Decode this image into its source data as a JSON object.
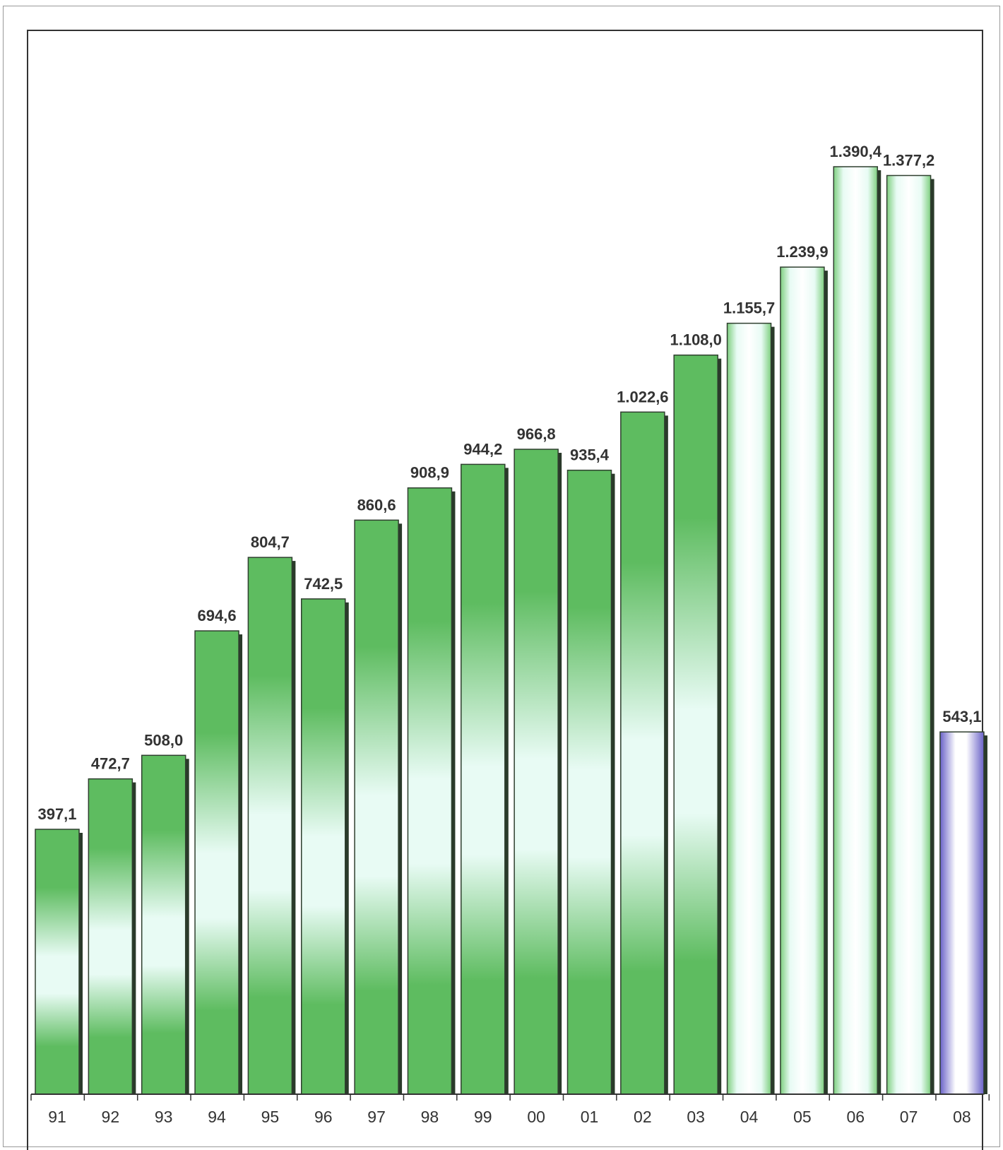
{
  "chart_data": {
    "type": "bar",
    "categories": [
      "91",
      "92",
      "93",
      "94",
      "95",
      "96",
      "97",
      "98",
      "99",
      "00",
      "01",
      "02",
      "03",
      "04",
      "05",
      "06",
      "07",
      "08"
    ],
    "values": [
      397.1,
      472.7,
      508.0,
      694.6,
      804.7,
      742.5,
      860.6,
      908.9,
      944.2,
      966.8,
      935.4,
      1022.6,
      1108.0,
      1155.7,
      1239.9,
      1390.4,
      1377.2,
      543.1
    ],
    "value_labels": [
      "397,1",
      "472,7",
      "508,0",
      "694,6",
      "804,7",
      "742,5",
      "860,6",
      "908,9",
      "944,2",
      "966,8",
      "935,4",
      "1.022,6",
      "1.108,0",
      "1.155,7",
      "1.239,9",
      "1.390,4",
      "1.377,2",
      "543,1"
    ],
    "bar_styles": [
      "green",
      "green",
      "green",
      "green",
      "green",
      "green",
      "green",
      "green",
      "green",
      "green",
      "green",
      "green",
      "green",
      "light-green",
      "light-green",
      "light-green",
      "light-green",
      "purple"
    ],
    "colors": {
      "green_dark": "#5ebc60",
      "green_light": "#e8fbf4",
      "light_green_edge": "#7fcf80",
      "purple_dark": "#6a62c8",
      "purple_light": "#ffffff",
      "shadow": "#2a3a2a",
      "label": "#333333"
    },
    "title": "",
    "xlabel": "",
    "ylabel": "",
    "ylim": [
      0,
      1600
    ],
    "grid": false,
    "legend": "none"
  }
}
